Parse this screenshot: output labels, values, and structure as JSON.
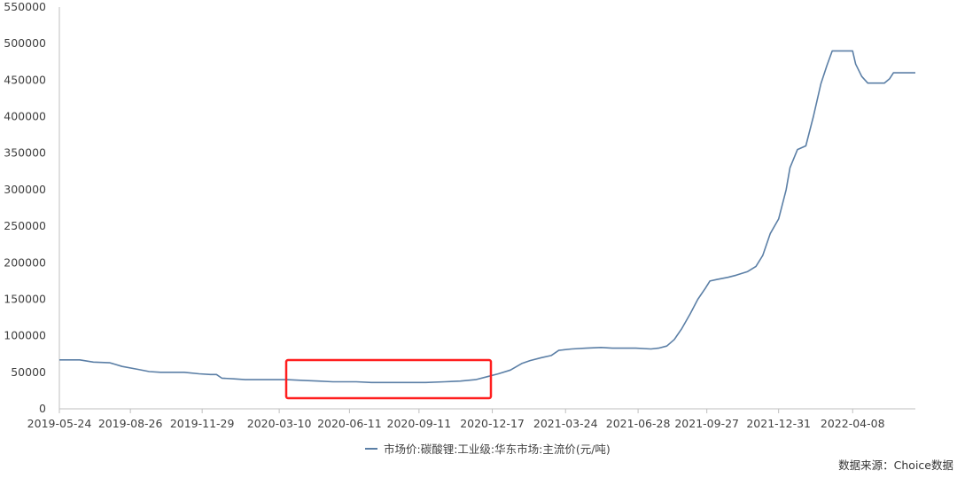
{
  "chart_data": {
    "type": "line",
    "title": "",
    "xlabel": "",
    "ylabel": "",
    "ylim": [
      0,
      550000
    ],
    "y_ticks": [
      0,
      50000,
      100000,
      150000,
      200000,
      250000,
      300000,
      350000,
      400000,
      450000,
      500000,
      550000
    ],
    "y_tick_labels": [
      "0",
      "50000",
      "100000",
      "150000",
      "200000",
      "250000",
      "300000",
      "350000",
      "400000",
      "450000",
      "500000",
      "550000"
    ],
    "xlim": [
      "2019-05-24",
      "2022-06-30"
    ],
    "x_ticks": [
      "2019-05-24",
      "2019-08-26",
      "2019-11-29",
      "2020-03-10",
      "2020-06-11",
      "2020-09-11",
      "2020-12-17",
      "2021-03-24",
      "2021-06-28",
      "2021-09-27",
      "2021-12-31",
      "2022-04-08"
    ],
    "grid": false,
    "legend_position": "bottom-center",
    "series": [
      {
        "name": "市场价:碳酸锂:工业级:华东市场:主流价(元/吨)",
        "color": "#5b7fa6",
        "points": [
          [
            "2019-05-24",
            67000
          ],
          [
            "2019-06-20",
            67000
          ],
          [
            "2019-07-08",
            64000
          ],
          [
            "2019-07-30",
            63000
          ],
          [
            "2019-08-15",
            58000
          ],
          [
            "2019-09-05",
            54000
          ],
          [
            "2019-09-20",
            51000
          ],
          [
            "2019-10-05",
            50000
          ],
          [
            "2019-11-05",
            50000
          ],
          [
            "2019-11-25",
            48000
          ],
          [
            "2019-12-10",
            47000
          ],
          [
            "2019-12-18",
            47000
          ],
          [
            "2019-12-25",
            42000
          ],
          [
            "2020-01-10",
            41000
          ],
          [
            "2020-01-25",
            40000
          ],
          [
            "2020-03-05",
            40000
          ],
          [
            "2020-03-20",
            40000
          ],
          [
            "2020-04-10",
            39000
          ],
          [
            "2020-05-01",
            38000
          ],
          [
            "2020-05-20",
            37000
          ],
          [
            "2020-06-20",
            37000
          ],
          [
            "2020-07-10",
            36000
          ],
          [
            "2020-09-20",
            36000
          ],
          [
            "2020-10-15",
            37000
          ],
          [
            "2020-11-05",
            38000
          ],
          [
            "2020-11-25",
            40000
          ],
          [
            "2020-12-10",
            44000
          ],
          [
            "2020-12-25",
            48000
          ],
          [
            "2021-01-10",
            53000
          ],
          [
            "2021-01-25",
            62000
          ],
          [
            "2021-02-05",
            66000
          ],
          [
            "2021-02-20",
            70000
          ],
          [
            "2021-03-05",
            73000
          ],
          [
            "2021-03-15",
            80000
          ],
          [
            "2021-04-01",
            82000
          ],
          [
            "2021-04-20",
            83000
          ],
          [
            "2021-05-10",
            84000
          ],
          [
            "2021-05-25",
            83000
          ],
          [
            "2021-06-25",
            83000
          ],
          [
            "2021-07-15",
            82000
          ],
          [
            "2021-07-25",
            83000
          ],
          [
            "2021-08-05",
            86000
          ],
          [
            "2021-08-15",
            95000
          ],
          [
            "2021-08-25",
            110000
          ],
          [
            "2021-09-05",
            130000
          ],
          [
            "2021-09-15",
            150000
          ],
          [
            "2021-09-25",
            165000
          ],
          [
            "2021-10-01",
            175000
          ],
          [
            "2021-10-10",
            177000
          ],
          [
            "2021-10-25",
            180000
          ],
          [
            "2021-11-05",
            183000
          ],
          [
            "2021-11-20",
            188000
          ],
          [
            "2021-12-01",
            195000
          ],
          [
            "2021-12-10",
            210000
          ],
          [
            "2021-12-20",
            240000
          ],
          [
            "2021-12-31",
            260000
          ],
          [
            "2022-01-10",
            300000
          ],
          [
            "2022-01-15",
            330000
          ],
          [
            "2022-01-25",
            355000
          ],
          [
            "2022-02-05",
            360000
          ],
          [
            "2022-02-15",
            400000
          ],
          [
            "2022-02-25",
            445000
          ],
          [
            "2022-03-05",
            470000
          ],
          [
            "2022-03-12",
            490000
          ],
          [
            "2022-04-08",
            490000
          ],
          [
            "2022-04-12",
            472000
          ],
          [
            "2022-04-20",
            455000
          ],
          [
            "2022-04-28",
            446000
          ],
          [
            "2022-05-20",
            446000
          ],
          [
            "2022-05-27",
            452000
          ],
          [
            "2022-06-01",
            460000
          ],
          [
            "2022-06-30",
            460000
          ]
        ]
      }
    ]
  },
  "source_note": "数据来源：Choice数据"
}
